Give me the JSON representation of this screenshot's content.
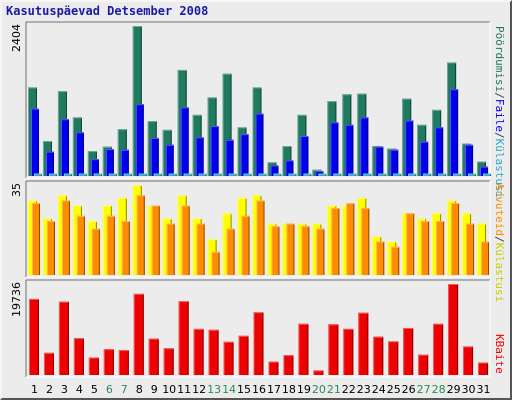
{
  "chart_data": {
    "type": "bar",
    "title": "Kasutuspäevad Detsember 2008",
    "categories": [
      "1",
      "2",
      "3",
      "4",
      "5",
      "6",
      "7",
      "8",
      "9",
      "10",
      "11",
      "12",
      "13",
      "14",
      "15",
      "16",
      "17",
      "18",
      "19",
      "20",
      "21",
      "22",
      "23",
      "24",
      "25",
      "26",
      "27",
      "28",
      "29",
      "30",
      "31"
    ],
    "weekend_days": [
      "6",
      "7",
      "13",
      "14",
      "20",
      "21",
      "27",
      "28"
    ],
    "panels": [
      {
        "id": "traffic",
        "ymax": 2404,
        "ymax_label": "2404",
        "series": [
          {
            "name": "Pöördumisi",
            "color": "#1f7a5f",
            "values": [
              1420,
              560,
              1360,
              940,
              400,
              470,
              750,
              2404,
              880,
              740,
              1700,
              980,
              1260,
              1640,
              780,
              1420,
              220,
              480,
              980,
              100,
              1200,
              1310,
              1320,
              480,
              440,
              1240,
              820,
              1060,
              1820,
              520,
              230
            ]
          },
          {
            "name": "Faile",
            "color": "#0000ee",
            "values": [
              1080,
              390,
              910,
              700,
              270,
              430,
              420,
              1150,
              610,
              500,
              1100,
              620,
              800,
              580,
              670,
              1000,
              170,
              250,
              640,
              80,
              860,
              820,
              940,
              470,
              420,
              890,
              550,
              780,
              1390,
              500,
              150
            ]
          },
          {
            "name": "Külastusi",
            "color": "#33a7c6",
            "values": [
              40,
              40,
              40,
              40,
              40,
              40,
              40,
              40,
              40,
              40,
              40,
              40,
              40,
              40,
              40,
              40,
              40,
              40,
              40,
              40,
              40,
              40,
              40,
              40,
              40,
              40,
              40,
              40,
              40,
              40,
              40
            ]
          }
        ]
      },
      {
        "id": "visits",
        "ymax": 35,
        "ymax_label": "35",
        "series": [
          {
            "name": "Külastusi",
            "color": "#ffff00",
            "values": [
              29,
              22,
              31,
              27,
              21,
              27,
              30,
              35,
              27,
              22,
              31,
              22,
              14,
              24,
              30,
              31,
              20,
              20,
              20,
              20,
              27,
              27,
              30,
              15,
              13,
              24,
              22,
              24,
              29,
              24,
              20
            ]
          },
          {
            "name": "Arvuteid",
            "color": "#ff8c00",
            "values": [
              28,
              21,
              29,
              23,
              18,
              23,
              21,
              31,
              27,
              20,
              27,
              20,
              9,
              18,
              23,
              29,
              19,
              20,
              19,
              18,
              26,
              28,
              26,
              13,
              11,
              24,
              21,
              21,
              28,
              20,
              13
            ]
          }
        ]
      },
      {
        "id": "kbytes",
        "ymax": 19736,
        "ymax_label": "19736",
        "series": [
          {
            "name": "KBaite",
            "color": "#ee0000",
            "values": [
              16500,
              4800,
              15900,
              8000,
              3800,
              5600,
              5400,
              17600,
              7900,
              5800,
              16000,
              10000,
              9800,
              7200,
              8500,
              13600,
              2900,
              4300,
              11100,
              1000,
              11000,
              10000,
              13500,
              8300,
              7300,
              10200,
              4400,
              11100,
              19736,
              6200,
              2700
            ]
          }
        ]
      }
    ],
    "side_labels": {
      "panel1": [
        {
          "text": "Pöördumisi",
          "color": "#1f7a5f"
        },
        {
          "text": "/",
          "color": "#444444"
        },
        {
          "text": "Faile",
          "color": "#0000ee"
        },
        {
          "text": "/",
          "color": "#444444"
        },
        {
          "text": "Külastusi",
          "color": "#33a7c6"
        }
      ],
      "panel2": [
        {
          "text": "Arvuteid",
          "color": "#ff8c00"
        },
        {
          "text": "/",
          "color": "#444444"
        },
        {
          "text": "Külastusi",
          "color": "#cccc00"
        }
      ],
      "panel3": [
        {
          "text": "KBaite",
          "color": "#ee0000"
        }
      ]
    }
  },
  "colors": {
    "background": "#ececec",
    "panel_bg": "#ececec",
    "weekday_label": "#000000",
    "weekend_label": "#2e8b57"
  }
}
